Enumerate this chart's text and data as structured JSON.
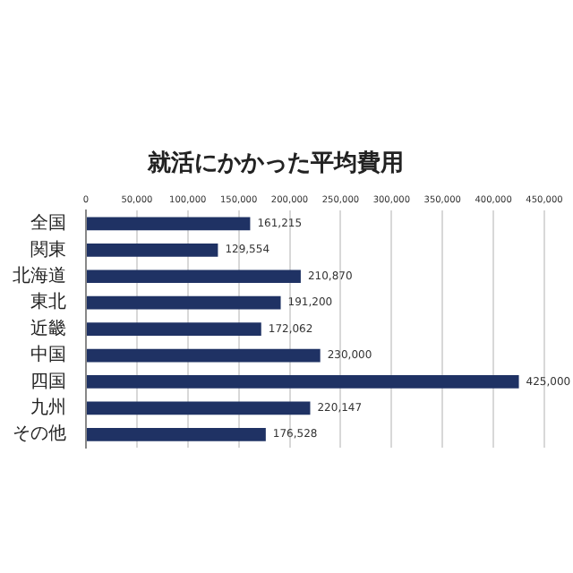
{
  "chart_data": {
    "type": "bar",
    "orientation": "horizontal",
    "title": "就活にかかった平均費用",
    "categories": [
      "全国",
      "関東",
      "北海道",
      "東北",
      "近畿",
      "中国",
      "四国",
      "九州",
      "その他"
    ],
    "values": [
      161215,
      129554,
      210870,
      191200,
      172062,
      230000,
      425000,
      220147,
      176528
    ],
    "value_labels": [
      "161,215",
      "129,554",
      "210,870",
      "191,200",
      "172,062",
      "230,000",
      "425,000",
      "220,147",
      "176,528"
    ],
    "color": "#1f3264",
    "xlim": [
      0,
      450000
    ],
    "xticks": [
      0,
      {
        "value": 50000,
        "label": "50,000"
      },
      {
        "value": 100000,
        "label": "100,000"
      },
      {
        "value": 150000,
        "label": "150,000"
      },
      {
        "value": 200000,
        "label": "200,000"
      },
      {
        "value": 250000,
        "label": "250,000"
      },
      {
        "value": 300000,
        "label": "300,000"
      },
      {
        "value": 350000,
        "label": "350,000"
      },
      {
        "value": 400000,
        "label": "400,000"
      },
      {
        "value": 450000,
        "label": "450,000"
      }
    ],
    "grid": "x"
  }
}
